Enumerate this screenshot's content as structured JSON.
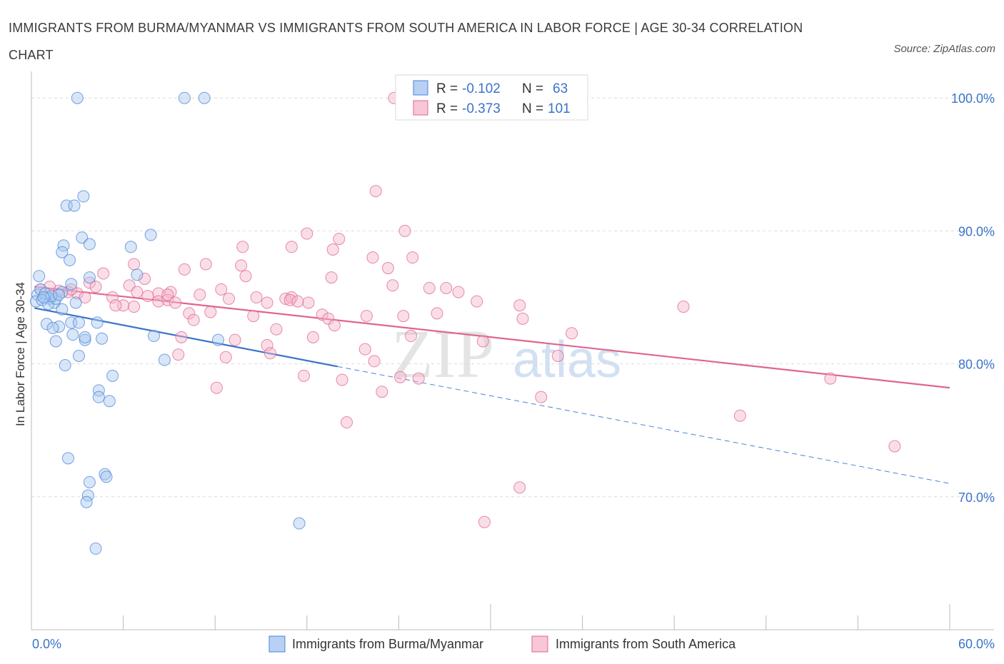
{
  "title": "IMMIGRANTS FROM BURMA/MYANMAR VS IMMIGRANTS FROM SOUTH AMERICA IN LABOR FORCE | AGE 30-34 CORRELATION CHART",
  "source": "Source: ZipAtlas.com",
  "watermark": {
    "zip": "ZIP",
    "atlas": "atlas"
  },
  "colors": {
    "blue": "#4a84d8",
    "blue_fill": "#a9c8f0",
    "pink": "#e0658f",
    "pink_fill": "#f4b5ca",
    "axis_text": "#3b73c8"
  },
  "chart_data": {
    "type": "scatter",
    "xlabel": "",
    "ylabel": "In Labor Force | Age 30-34",
    "xlim": [
      0,
      60
    ],
    "ylim": [
      60,
      102
    ],
    "x_tick_labels": [
      "0.0%",
      "60.0%"
    ],
    "y_ticks": [
      70,
      80,
      90,
      100
    ],
    "y_tick_labels": [
      "70.0%",
      "80.0%",
      "90.0%",
      "100.0%"
    ],
    "grid": true,
    "legend": {
      "placement": "top-center",
      "rows": [
        {
          "r_label": "R =",
          "r_value": "-0.102",
          "n_label": "N =",
          "n_value": "63"
        },
        {
          "r_label": "R =",
          "r_value": "-0.373",
          "n_label": "N =",
          "n_value": "101"
        }
      ]
    },
    "series": [
      {
        "name": "Immigrants from Burma/Myanmar",
        "color": "#4a84d8",
        "trend": {
          "x": [
            0.2,
            20.0
          ],
          "y": [
            84.2,
            79.8
          ]
        },
        "trend_dashed": {
          "x": [
            20.0,
            60.0
          ],
          "y": [
            79.8,
            71.0
          ]
        },
        "points": [
          [
            3.0,
            100.0
          ],
          [
            10.0,
            100.0
          ],
          [
            11.3,
            100.0
          ],
          [
            3.4,
            92.6
          ],
          [
            2.3,
            91.9
          ],
          [
            2.8,
            91.9
          ],
          [
            3.3,
            89.5
          ],
          [
            7.8,
            89.7
          ],
          [
            2.1,
            88.9
          ],
          [
            3.8,
            89.0
          ],
          [
            6.5,
            88.8
          ],
          [
            2.0,
            88.4
          ],
          [
            2.5,
            87.8
          ],
          [
            0.5,
            86.6
          ],
          [
            3.8,
            86.5
          ],
          [
            6.9,
            86.7
          ],
          [
            0.4,
            85.2
          ],
          [
            0.6,
            85.6
          ],
          [
            0.9,
            85.3
          ],
          [
            1.2,
            84.9
          ],
          [
            1.5,
            84.6
          ],
          [
            0.3,
            84.7
          ],
          [
            0.7,
            84.8
          ],
          [
            1.1,
            84.5
          ],
          [
            1.6,
            84.9
          ],
          [
            2.0,
            85.4
          ],
          [
            2.6,
            86.0
          ],
          [
            1.3,
            85.1
          ],
          [
            0.8,
            85.0
          ],
          [
            1.8,
            85.2
          ],
          [
            2.0,
            84.1
          ],
          [
            2.9,
            84.6
          ],
          [
            1.0,
            83.0
          ],
          [
            1.8,
            82.8
          ],
          [
            1.4,
            82.7
          ],
          [
            2.6,
            83.1
          ],
          [
            3.1,
            83.1
          ],
          [
            4.3,
            83.1
          ],
          [
            2.7,
            82.2
          ],
          [
            3.5,
            81.8
          ],
          [
            1.6,
            81.7
          ],
          [
            3.5,
            82.0
          ],
          [
            4.6,
            81.9
          ],
          [
            8.0,
            82.1
          ],
          [
            12.2,
            81.8
          ],
          [
            3.1,
            80.6
          ],
          [
            2.2,
            79.9
          ],
          [
            8.7,
            80.3
          ],
          [
            5.3,
            79.1
          ],
          [
            4.4,
            78.0
          ],
          [
            4.4,
            77.5
          ],
          [
            5.1,
            77.2
          ],
          [
            2.4,
            72.9
          ],
          [
            4.8,
            71.7
          ],
          [
            4.9,
            71.5
          ],
          [
            3.8,
            71.1
          ],
          [
            3.7,
            70.1
          ],
          [
            3.6,
            69.6
          ],
          [
            17.5,
            68.0
          ],
          [
            4.2,
            66.1
          ]
        ]
      },
      {
        "name": "Immigrants from South America",
        "color": "#e0658f",
        "trend": {
          "x": [
            0.2,
            60.0
          ],
          "y": [
            85.8,
            78.2
          ]
        },
        "points": [
          [
            23.7,
            100.0
          ],
          [
            22.5,
            93.0
          ],
          [
            24.4,
            90.0
          ],
          [
            18.0,
            89.8
          ],
          [
            20.1,
            89.4
          ],
          [
            17.0,
            88.8
          ],
          [
            13.8,
            88.8
          ],
          [
            19.7,
            88.6
          ],
          [
            24.9,
            88.0
          ],
          [
            22.3,
            88.0
          ],
          [
            6.7,
            87.5
          ],
          [
            11.4,
            87.5
          ],
          [
            13.7,
            87.4
          ],
          [
            10.0,
            87.1
          ],
          [
            23.3,
            87.2
          ],
          [
            4.7,
            86.8
          ],
          [
            7.4,
            86.4
          ],
          [
            14.0,
            86.6
          ],
          [
            19.6,
            86.5
          ],
          [
            0.6,
            85.6
          ],
          [
            1.2,
            85.8
          ],
          [
            1.8,
            85.5
          ],
          [
            2.4,
            85.4
          ],
          [
            3.0,
            85.3
          ],
          [
            2.6,
            85.6
          ],
          [
            3.8,
            86.1
          ],
          [
            4.2,
            85.8
          ],
          [
            6.4,
            85.9
          ],
          [
            6.9,
            85.4
          ],
          [
            8.3,
            85.3
          ],
          [
            9.1,
            85.4
          ],
          [
            12.4,
            85.6
          ],
          [
            11.0,
            85.2
          ],
          [
            12.9,
            84.9
          ],
          [
            14.7,
            85.0
          ],
          [
            16.6,
            84.9
          ],
          [
            17.0,
            85.0
          ],
          [
            18.1,
            84.6
          ],
          [
            23.6,
            85.9
          ],
          [
            26.0,
            85.7
          ],
          [
            27.1,
            85.7
          ],
          [
            27.9,
            85.4
          ],
          [
            29.1,
            84.7
          ],
          [
            31.9,
            84.4
          ],
          [
            42.6,
            84.3
          ],
          [
            34.4,
            80.6
          ],
          [
            3.5,
            85.0
          ],
          [
            5.3,
            85.0
          ],
          [
            6.0,
            84.4
          ],
          [
            7.6,
            85.1
          ],
          [
            8.3,
            84.7
          ],
          [
            8.9,
            84.8
          ],
          [
            8.9,
            85.2
          ],
          [
            9.4,
            84.6
          ],
          [
            15.4,
            84.6
          ],
          [
            16.9,
            84.8
          ],
          [
            17.4,
            84.7
          ],
          [
            5.5,
            84.4
          ],
          [
            6.7,
            84.3
          ],
          [
            10.3,
            83.8
          ],
          [
            11.7,
            83.9
          ],
          [
            10.6,
            83.3
          ],
          [
            14.5,
            83.6
          ],
          [
            19.0,
            83.7
          ],
          [
            19.4,
            83.4
          ],
          [
            21.9,
            83.6
          ],
          [
            24.3,
            83.6
          ],
          [
            26.5,
            83.8
          ],
          [
            32.1,
            83.4
          ],
          [
            19.8,
            82.9
          ],
          [
            16.0,
            82.6
          ],
          [
            9.8,
            82.0
          ],
          [
            13.3,
            81.8
          ],
          [
            18.4,
            82.0
          ],
          [
            24.8,
            82.1
          ],
          [
            29.5,
            81.7
          ],
          [
            35.3,
            82.3
          ],
          [
            15.4,
            81.4
          ],
          [
            15.6,
            80.8
          ],
          [
            21.8,
            81.1
          ],
          [
            9.6,
            80.7
          ],
          [
            12.7,
            80.5
          ],
          [
            22.4,
            80.2
          ],
          [
            17.8,
            79.1
          ],
          [
            20.3,
            78.8
          ],
          [
            24.1,
            79.0
          ],
          [
            25.3,
            78.9
          ],
          [
            12.1,
            78.2
          ],
          [
            22.9,
            77.9
          ],
          [
            33.3,
            77.5
          ],
          [
            52.2,
            78.9
          ],
          [
            20.6,
            75.6
          ],
          [
            46.3,
            76.1
          ],
          [
            56.4,
            73.8
          ],
          [
            31.9,
            70.7
          ],
          [
            29.6,
            68.1
          ]
        ]
      }
    ]
  },
  "bottom_legend": [
    {
      "label": "Immigrants from Burma/Myanmar"
    },
    {
      "label": "Immigrants from South America"
    }
  ]
}
